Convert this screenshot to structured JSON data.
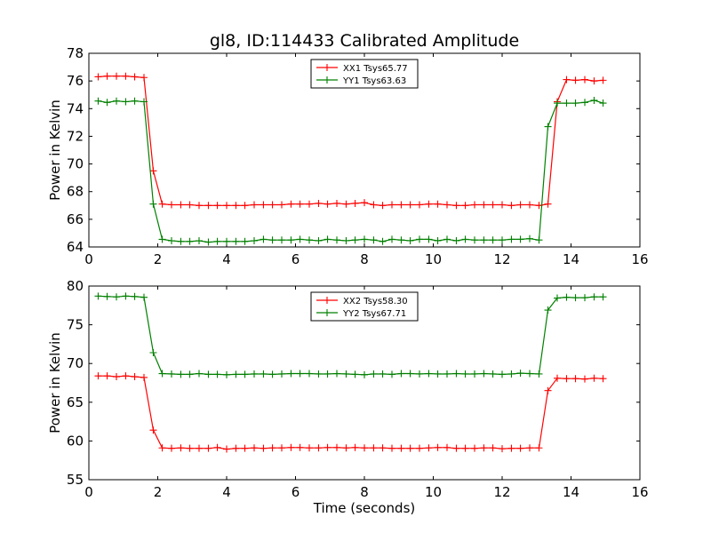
{
  "title": "gl8, ID:114433 Calibrated Amplitude",
  "colors": {
    "red": "#ff0000",
    "green": "#008000"
  },
  "chart_data": [
    {
      "type": "line",
      "title": "gl8, ID:114433 Calibrated Amplitude",
      "xlabel": "",
      "ylabel": "Power in Kelvin",
      "xlim": [
        0,
        16
      ],
      "ylim": [
        64,
        78
      ],
      "xticks": [
        0,
        2,
        4,
        6,
        8,
        10,
        12,
        14,
        16
      ],
      "yticks": [
        64,
        66,
        68,
        70,
        72,
        74,
        76,
        78
      ],
      "grid": false,
      "legend_position": "top-center",
      "x": [
        0.27,
        0.53,
        0.8,
        1.07,
        1.33,
        1.6,
        1.87,
        2.13,
        2.4,
        2.67,
        2.93,
        3.2,
        3.47,
        3.73,
        4.0,
        4.27,
        4.53,
        4.8,
        5.07,
        5.33,
        5.6,
        5.87,
        6.13,
        6.4,
        6.67,
        6.93,
        7.2,
        7.47,
        7.73,
        8.0,
        8.27,
        8.53,
        8.8,
        9.07,
        9.33,
        9.6,
        9.87,
        10.13,
        10.4,
        10.67,
        10.93,
        11.2,
        11.47,
        11.73,
        12.0,
        12.27,
        12.53,
        12.8,
        13.07,
        13.33,
        13.6,
        13.87,
        14.13,
        14.4,
        14.67,
        14.93
      ],
      "series": [
        {
          "name": "XX1 Tsys65.77",
          "color": "#ff0000",
          "values": [
            76.3,
            76.35,
            76.35,
            76.35,
            76.3,
            76.25,
            69.5,
            67.1,
            67.05,
            67.05,
            67.05,
            67.0,
            67.0,
            67.0,
            67.0,
            67.0,
            67.0,
            67.05,
            67.05,
            67.05,
            67.05,
            67.1,
            67.1,
            67.1,
            67.15,
            67.1,
            67.15,
            67.1,
            67.15,
            67.2,
            67.05,
            67.0,
            67.05,
            67.05,
            67.05,
            67.05,
            67.1,
            67.1,
            67.05,
            67.0,
            67.0,
            67.05,
            67.05,
            67.05,
            67.05,
            67.0,
            67.05,
            67.05,
            67.0,
            67.1,
            74.5,
            76.1,
            76.05,
            76.1,
            76.0,
            76.05
          ]
        },
        {
          "name": "YY1 Tsys63.63",
          "color": "#008000",
          "values": [
            74.55,
            74.45,
            74.55,
            74.5,
            74.55,
            74.5,
            67.1,
            64.55,
            64.45,
            64.4,
            64.4,
            64.45,
            64.35,
            64.4,
            64.4,
            64.4,
            64.4,
            64.45,
            64.55,
            64.5,
            64.5,
            64.5,
            64.55,
            64.5,
            64.45,
            64.55,
            64.5,
            64.45,
            64.5,
            64.55,
            64.5,
            64.4,
            64.55,
            64.5,
            64.45,
            64.55,
            64.55,
            64.45,
            64.55,
            64.45,
            64.55,
            64.5,
            64.5,
            64.5,
            64.5,
            64.55,
            64.55,
            64.6,
            64.5,
            72.7,
            74.4,
            74.4,
            74.4,
            74.45,
            74.6,
            74.4
          ]
        }
      ]
    },
    {
      "type": "line",
      "title": "",
      "xlabel": "Time (seconds)",
      "ylabel": "Power in Kelvin",
      "xlim": [
        0,
        16
      ],
      "ylim": [
        55,
        80
      ],
      "xticks": [
        0,
        2,
        4,
        6,
        8,
        10,
        12,
        14,
        16
      ],
      "yticks": [
        55,
        60,
        65,
        70,
        75,
        80
      ],
      "grid": false,
      "legend_position": "top-center",
      "x": [
        0.27,
        0.53,
        0.8,
        1.07,
        1.33,
        1.6,
        1.87,
        2.13,
        2.4,
        2.67,
        2.93,
        3.2,
        3.47,
        3.73,
        4.0,
        4.27,
        4.53,
        4.8,
        5.07,
        5.33,
        5.6,
        5.87,
        6.13,
        6.4,
        6.67,
        6.93,
        7.2,
        7.47,
        7.73,
        8.0,
        8.27,
        8.53,
        8.8,
        9.07,
        9.33,
        9.6,
        9.87,
        10.13,
        10.4,
        10.67,
        10.93,
        11.2,
        11.47,
        11.73,
        12.0,
        12.27,
        12.53,
        12.8,
        13.07,
        13.33,
        13.6,
        13.87,
        14.13,
        14.4,
        14.67,
        14.93
      ],
      "series": [
        {
          "name": "XX2 Tsys58.30",
          "color": "#ff0000",
          "values": [
            68.4,
            68.4,
            68.3,
            68.4,
            68.3,
            68.2,
            61.4,
            59.1,
            59.05,
            59.1,
            59.05,
            59.05,
            59.05,
            59.15,
            58.95,
            59.05,
            59.05,
            59.1,
            59.05,
            59.1,
            59.1,
            59.15,
            59.15,
            59.1,
            59.1,
            59.15,
            59.15,
            59.1,
            59.15,
            59.1,
            59.1,
            59.1,
            59.05,
            59.05,
            59.05,
            59.05,
            59.1,
            59.15,
            59.15,
            59.05,
            59.05,
            59.05,
            59.1,
            59.1,
            59.0,
            59.05,
            59.05,
            59.1,
            59.1,
            66.5,
            68.1,
            68.05,
            68.05,
            68.0,
            68.1,
            68.05
          ]
        },
        {
          "name": "YY2 Tsys67.71",
          "color": "#008000",
          "values": [
            78.7,
            78.65,
            78.6,
            78.7,
            78.65,
            78.55,
            71.4,
            68.7,
            68.65,
            68.6,
            68.6,
            68.7,
            68.6,
            68.6,
            68.55,
            68.6,
            68.6,
            68.65,
            68.65,
            68.6,
            68.65,
            68.7,
            68.7,
            68.7,
            68.65,
            68.65,
            68.7,
            68.65,
            68.6,
            68.55,
            68.65,
            68.65,
            68.6,
            68.7,
            68.7,
            68.65,
            68.7,
            68.65,
            68.65,
            68.7,
            68.65,
            68.65,
            68.7,
            68.65,
            68.6,
            68.65,
            68.75,
            68.7,
            68.65,
            76.9,
            78.45,
            78.55,
            78.5,
            78.5,
            78.6,
            78.6
          ]
        }
      ]
    }
  ]
}
